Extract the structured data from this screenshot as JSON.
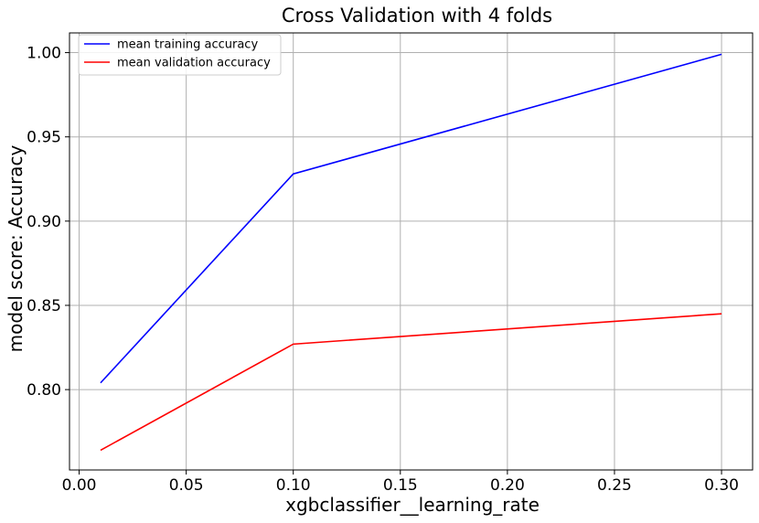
{
  "chart_data": {
    "type": "line",
    "title": "Cross Validation with 4 folds",
    "xlabel": "xgbclassifier__learning_rate",
    "ylabel": "model score: Accuracy",
    "x": [
      0.01,
      0.1,
      0.3
    ],
    "series": [
      {
        "name": "mean training accuracy",
        "color": "#0000ff",
        "values": [
          0.804,
          0.928,
          0.999
        ]
      },
      {
        "name": "mean validation accuracy",
        "color": "#ff0000",
        "values": [
          0.764,
          0.827,
          0.845
        ]
      }
    ],
    "xlim": [
      -0.0045,
      0.3145
    ],
    "ylim": [
      0.7523,
      1.0117
    ],
    "xticks": [
      0.0,
      0.05,
      0.1,
      0.15,
      0.2,
      0.25,
      0.3
    ],
    "xtick_labels": [
      "0.00",
      "0.05",
      "0.10",
      "0.15",
      "0.20",
      "0.25",
      "0.30"
    ],
    "yticks": [
      0.8,
      0.85,
      0.9,
      0.95,
      1.0
    ],
    "ytick_labels": [
      "0.80",
      "0.85",
      "0.90",
      "0.95",
      "1.00"
    ],
    "grid": true,
    "legend_position": "top-left"
  }
}
